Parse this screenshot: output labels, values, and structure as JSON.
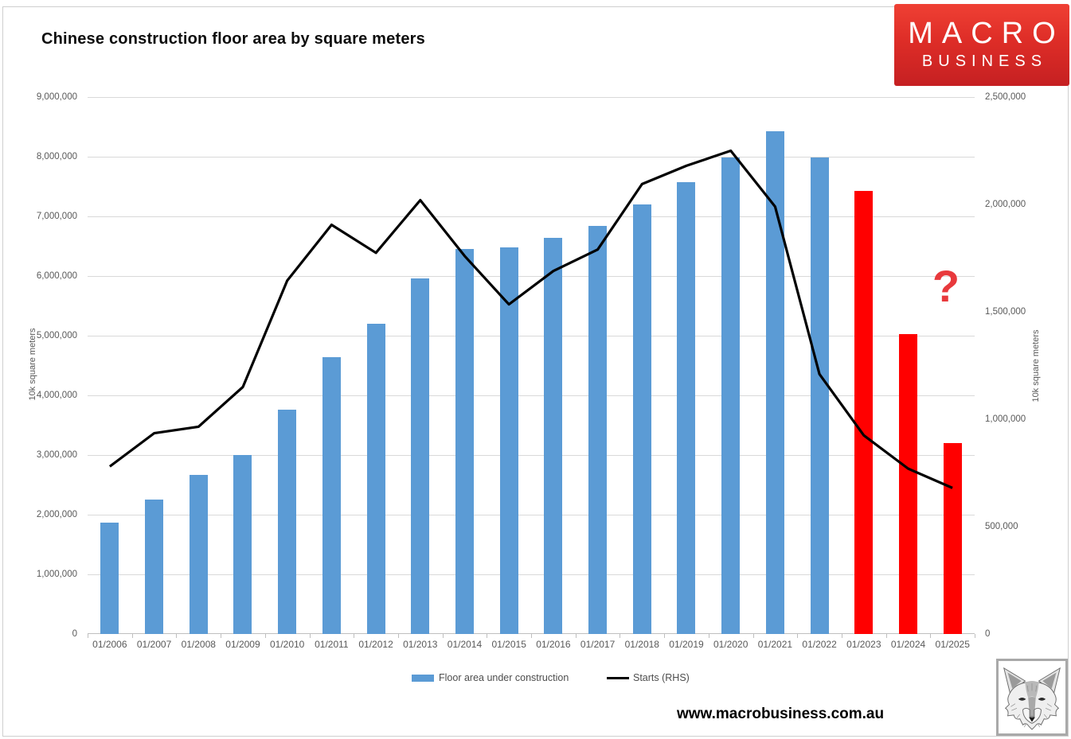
{
  "title": "Chinese construction floor area by square meters",
  "logo": {
    "line1": "MACRO",
    "line2": "BUSINESS"
  },
  "annotation": {
    "question_mark": "?"
  },
  "legend": {
    "bar_label": "Floor area under construction",
    "line_label": "Starts (RHS)"
  },
  "footer": {
    "url": "www.macrobusiness.com.au"
  },
  "colors": {
    "bar_blue": "#5B9BD5",
    "bar_highlight_red": "#FF0000",
    "line_black": "#000000",
    "question_mark_red": "#E8393C",
    "logo_red": "#D92B26",
    "axis_text": "#595959",
    "gridline": "#D9D9D9"
  },
  "chart_data": {
    "type": "bar",
    "subtype": "bar+line combo, dual axis",
    "grid": "horizontal gridlines on, legend bottom",
    "categories": [
      "01/2006",
      "01/2007",
      "01/2008",
      "01/2009",
      "01/2010",
      "01/2011",
      "01/2012",
      "01/2013",
      "01/2014",
      "01/2015",
      "01/2016",
      "01/2017",
      "01/2018",
      "01/2019",
      "01/2020",
      "01/2021",
      "01/2022",
      "01/2023",
      "01/2024",
      "01/2025"
    ],
    "series": [
      {
        "name": "Floor area under construction",
        "type": "bar",
        "axis": "left",
        "color": "#5B9BD5",
        "highlight_color": "#FF0000",
        "highlight_categories": [
          "01/2023",
          "01/2024",
          "01/2025"
        ],
        "values": [
          1860000,
          2250000,
          2665000,
          3000000,
          3760000,
          4640000,
          5200000,
          5960000,
          6450000,
          6480000,
          6640000,
          6840000,
          7200000,
          7570000,
          7990000,
          8430000,
          7980000,
          7420000,
          5030000,
          3200000
        ]
      },
      {
        "name": "Starts (RHS)",
        "type": "line",
        "axis": "right",
        "color": "#000000",
        "values": [
          780000,
          935000,
          965000,
          1150000,
          1645000,
          1905000,
          1775000,
          2020000,
          1760000,
          1535000,
          1690000,
          1790000,
          2095000,
          2180000,
          2250000,
          1990000,
          1210000,
          925000,
          770000,
          680000
        ]
      }
    ],
    "left_axis": {
      "label": "10k square meters",
      "min": 0,
      "max": 9000000,
      "step": 1000000
    },
    "right_axis": {
      "label": "10k square meters",
      "min": 0,
      "max": 2500000,
      "step": 500000
    }
  }
}
